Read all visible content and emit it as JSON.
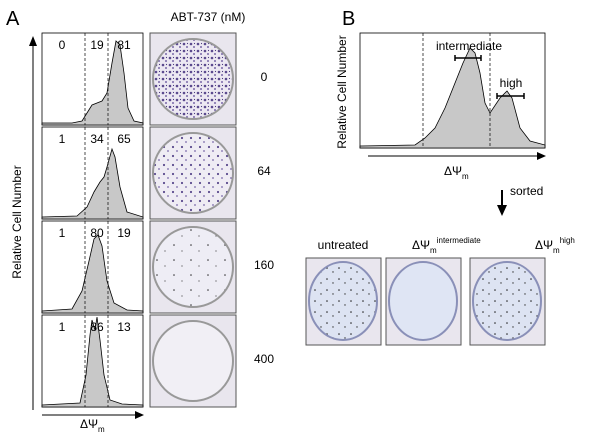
{
  "panel_a": {
    "label": "A",
    "treatment_title": "ABT-737 (nM)",
    "y_axis_label": "Relative Cell Number",
    "x_axis_label": "ΔΨ",
    "x_axis_label_sub": "m",
    "rows": [
      {
        "percentages": [
          0,
          19,
          81
        ],
        "dose": 0
      },
      {
        "percentages": [
          1,
          34,
          65
        ],
        "dose": 64
      },
      {
        "percentages": [
          1,
          80,
          19
        ],
        "dose": 160
      },
      {
        "percentages": [
          1,
          86,
          13
        ],
        "dose": 400
      }
    ]
  },
  "panel_b": {
    "label": "B",
    "y_axis_label": "Relative Cell Number",
    "x_axis_label": "ΔΨ",
    "x_axis_label_sub": "m",
    "gates": [
      "intermediate",
      "high"
    ],
    "arrow_label": "sorted",
    "wells": [
      {
        "label": "untreated"
      },
      {
        "label": "ΔΨ",
        "sub": "m",
        "sup": "intermediate"
      },
      {
        "label": "ΔΨ",
        "sub": "m",
        "sup": "high"
      }
    ]
  }
}
